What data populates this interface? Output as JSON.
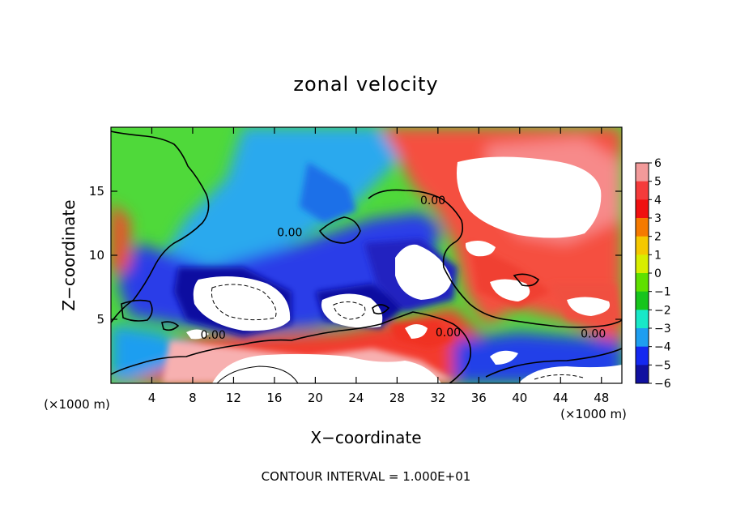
{
  "chart_data": {
    "type": "heatmap",
    "title": "zonal velocity",
    "xlabel": "X−coordinate",
    "ylabel": "Z−coordinate",
    "x_unit_left": "(×1000 m)",
    "x_unit_right": "(×1000 m)",
    "xlim": [
      0,
      50
    ],
    "ylim": [
      0,
      20
    ],
    "x_ticks": [
      4,
      8,
      12,
      16,
      20,
      24,
      28,
      32,
      36,
      40,
      44,
      48
    ],
    "x_tick_labels": [
      "4",
      "8",
      "12",
      "16",
      "20",
      "24",
      "28",
      "32",
      "36",
      "40",
      "44",
      "48"
    ],
    "y_ticks": [
      5,
      10,
      15
    ],
    "y_tick_labels": [
      "5",
      "10",
      "15"
    ],
    "colorbar": {
      "levels": [
        6,
        5,
        4,
        3,
        2,
        1,
        0,
        -1,
        -2,
        -3,
        -4,
        -5,
        -6
      ],
      "labels": [
        "6",
        "5",
        "4",
        "3",
        "2",
        "1",
        "0",
        "−1",
        "−2",
        "−3",
        "−4",
        "−5",
        "−6"
      ],
      "colors": [
        "#f29a9a",
        "#f53b3b",
        "#f01010",
        "#f57a00",
        "#f5c800",
        "#d8ee00",
        "#5fe000",
        "#17c51c",
        "#18e8c8",
        "#1e9ef0",
        "#1428f0",
        "#1010a0",
        "#6a0fb0"
      ]
    },
    "contour_labels": [
      {
        "x": 17.5,
        "z": 11.8,
        "text": "0.00"
      },
      {
        "x": 10.0,
        "z": 3.8,
        "text": "0.00"
      },
      {
        "x": 31.5,
        "z": 14.3,
        "text": "0.00"
      },
      {
        "x": 33.0,
        "z": 4.0,
        "text": "0.00"
      },
      {
        "x": 47.2,
        "z": 3.9,
        "text": "0.00"
      }
    ],
    "footer": "CONTOUR INTERVAL = 1.000E+01"
  }
}
